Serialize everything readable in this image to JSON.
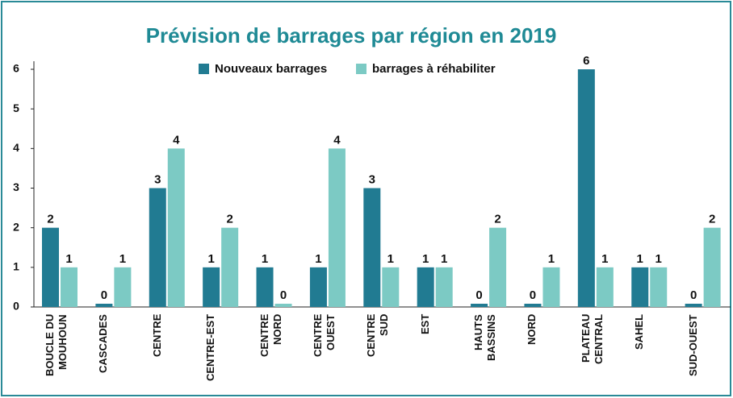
{
  "chart_data": {
    "type": "bar",
    "title": "Prévision de barrages par région en 2019",
    "categories": [
      "BOUCLE DU\nMOUHOUN",
      "CASCADES",
      "CENTRE",
      "CENTRE-EST",
      "CENTRE\nNORD",
      "CENTRE\nOUEST",
      "CENTRE\nSUD",
      "EST",
      "HAUTS\nBASSINS",
      "NORD",
      "PLATEAU\nCENTRAL",
      "SAHEL",
      "SUD-OUEST"
    ],
    "series": [
      {
        "name": "Nouveaux barrages",
        "color": "#217b92",
        "values": [
          2,
          0,
          3,
          1,
          1,
          1,
          3,
          1,
          0,
          0,
          6,
          1,
          0
        ]
      },
      {
        "name": "barrages à réhabiliter",
        "color": "#7ccac4",
        "values": [
          1,
          1,
          4,
          2,
          0,
          4,
          1,
          1,
          2,
          1,
          1,
          1,
          2
        ]
      }
    ],
    "ylim": [
      0,
      6
    ],
    "yticks": [
      0,
      1,
      2,
      3,
      4,
      5,
      6
    ],
    "grid": false
  }
}
